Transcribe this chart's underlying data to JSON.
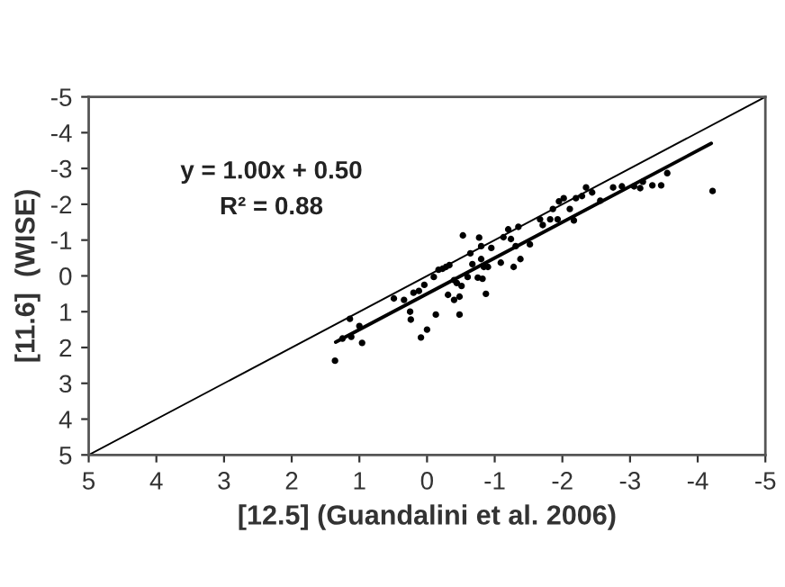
{
  "chart_data": {
    "type": "scatter",
    "xlabel": "[12.5] (Guandalini et al. 2006)",
    "ylabel": "[11.6]  (WISE)",
    "xlim": [
      5,
      -5
    ],
    "ylim": [
      5,
      -5
    ],
    "xticks": [
      5,
      4,
      3,
      2,
      1,
      0,
      -1,
      -2,
      -3,
      -4,
      -5
    ],
    "yticks": [
      5,
      4,
      3,
      2,
      1,
      0,
      -1,
      -2,
      -3,
      -4,
      -5
    ],
    "grid": false,
    "annotations": [
      "y = 1.00x + 0.50",
      "R² = 0.88"
    ],
    "series": [
      {
        "color": "#000000",
        "marker": "circle",
        "x": [
          1.36,
          1.14,
          1.25,
          1.12,
          1.0,
          0.96,
          0.49,
          0.34,
          0.25,
          0.24,
          0.2,
          0.12,
          0.04,
          0.09,
          0,
          -0.1,
          -0.13,
          -0.17,
          -0.23,
          -0.28,
          -0.31,
          -0.33,
          -0.4,
          -0.4,
          -0.44,
          -0.48,
          -0.48,
          -0.51,
          -0.53,
          -0.6,
          -0.64,
          -0.67,
          -0.75,
          -0.77,
          -0.8,
          -0.8,
          -0.82,
          -0.84,
          -0.87,
          -0.9,
          -0.95,
          -1.09,
          -1.13,
          -1.2,
          -1.24,
          -1.28,
          -1.31,
          -1.35,
          -1.38,
          -1.52,
          -1.67,
          -1.71,
          -1.82,
          -1.86,
          -1.93,
          -1.95,
          -2.02,
          -2.11,
          -2.17,
          -2.2,
          -2.29,
          -2.35,
          -2.44,
          -2.56,
          -2.75,
          -2.88,
          -3.06,
          -3.15,
          -3.19,
          -3.33,
          -3.46,
          -3.55,
          -4.22
        ],
        "values": [
          2.37,
          1.2,
          1.75,
          1.7,
          1.4,
          1.87,
          0.63,
          0.67,
          1.0,
          1.22,
          0.47,
          0.42,
          0.25,
          1.72,
          1.5,
          0.03,
          1.08,
          -0.17,
          -0.2,
          -0.25,
          0.53,
          -0.3,
          0.67,
          0.12,
          0.2,
          0.58,
          1.08,
          0.28,
          -1.13,
          0.03,
          -0.63,
          -0.33,
          0.05,
          -1.07,
          -0.83,
          -0.47,
          0.08,
          -0.25,
          0.5,
          -0.25,
          -0.78,
          -0.37,
          -1.08,
          -1.3,
          -1.03,
          -0.25,
          -0.83,
          -1.37,
          -0.47,
          -0.88,
          -1.58,
          -1.42,
          -1.58,
          -1.87,
          -1.58,
          -2.08,
          -2.17,
          -1.87,
          -1.55,
          -2.17,
          -2.23,
          -2.47,
          -2.33,
          -2.1,
          -2.47,
          -2.5,
          -2.5,
          -2.45,
          -2.63,
          -2.53,
          -2.53,
          -2.87,
          -2.37
        ]
      },
      {
        "type": "line",
        "color": "#000000",
        "line_style": "solid",
        "marker": "none",
        "x": [
          1.35,
          -4.2
        ],
        "values": [
          1.85,
          -3.7
        ]
      },
      {
        "type": "line",
        "color": "#000000",
        "line_style": "solid",
        "marker": "none",
        "x": [
          5,
          -5
        ],
        "values": [
          5,
          -5
        ]
      }
    ]
  }
}
